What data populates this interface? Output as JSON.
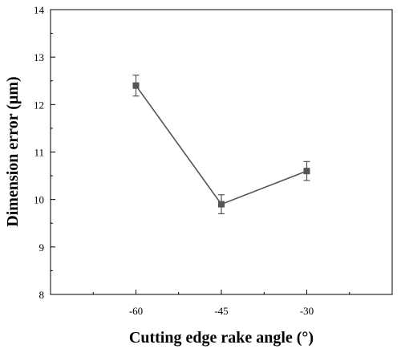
{
  "chart_data": {
    "type": "line",
    "title": "",
    "xlabel": "Cutting edge rake angle (°)",
    "ylabel": "Dimension error (µm)",
    "categories": [
      "-60",
      "-45",
      "-30"
    ],
    "x": [
      -60,
      -45,
      -30
    ],
    "xlim": [
      -75,
      -15
    ],
    "ylim": [
      8,
      14
    ],
    "yticks": [
      "8",
      "9",
      "10",
      "11",
      "12",
      "13",
      "14"
    ],
    "grid": false,
    "legend": "none",
    "series": [
      {
        "values": [
          12.4,
          9.9,
          10.6
        ],
        "error": [
          0.22,
          0.2,
          0.2
        ],
        "marker": "square",
        "color": "#555555"
      }
    ]
  }
}
